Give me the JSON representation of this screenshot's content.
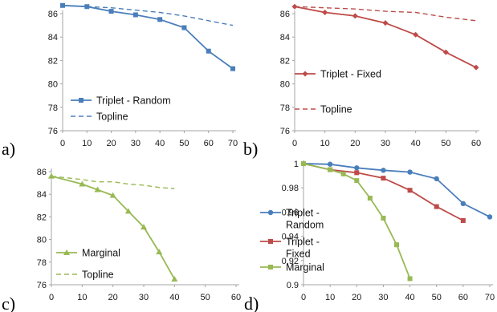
{
  "colors": {
    "triplet_random": "#4a7ebb",
    "triplet_fixed": "#be4b48",
    "marginal": "#98b954",
    "axis": "#a6a6a6"
  },
  "chart_data": [
    {
      "type": "line",
      "panel_label": "a)",
      "xlim": [
        0,
        70
      ],
      "ylim": [
        76,
        86
      ],
      "x_ticks": [
        "0",
        "10",
        "20",
        "30",
        "40",
        "50",
        "60",
        "70"
      ],
      "y_ticks": [
        "76",
        "78",
        "80",
        "82",
        "84",
        "86"
      ],
      "legend_position": "bottom-left",
      "series": [
        {
          "name": "Triplet - Random",
          "style": "solid",
          "marker": "square",
          "color": "#4a7ebb",
          "x": [
            0,
            10,
            20,
            30,
            40,
            50,
            60,
            70
          ],
          "y": [
            86.7,
            86.6,
            86.2,
            85.9,
            85.5,
            84.8,
            82.8,
            81.3
          ]
        },
        {
          "name": "Topline",
          "style": "dashed",
          "marker": "none",
          "color": "#4a7ebb",
          "x": [
            0,
            10,
            20,
            30,
            40,
            50,
            60,
            70
          ],
          "y": [
            86.7,
            86.6,
            86.5,
            86.3,
            86.1,
            85.8,
            85.4,
            85.0
          ]
        }
      ]
    },
    {
      "type": "line",
      "panel_label": "b)",
      "xlim": [
        0,
        60
      ],
      "ylim": [
        76,
        86
      ],
      "x_ticks": [
        "0",
        "10",
        "20",
        "30",
        "40",
        "50",
        "60"
      ],
      "y_ticks": [
        "76",
        "78",
        "80",
        "82",
        "84",
        "86"
      ],
      "legend_position": "right",
      "series": [
        {
          "name": "Triplet - Fixed",
          "style": "solid",
          "marker": "diamond",
          "color": "#be4b48",
          "x": [
            0,
            10,
            20,
            30,
            40,
            50,
            60
          ],
          "y": [
            86.6,
            86.1,
            85.8,
            85.2,
            84.2,
            82.7,
            81.4
          ]
        },
        {
          "name": "Topline",
          "style": "dashed",
          "marker": "none",
          "color": "#be4b48",
          "x": [
            0,
            10,
            20,
            30,
            40,
            50,
            60
          ],
          "y": [
            86.6,
            86.5,
            86.4,
            86.2,
            86.1,
            85.7,
            85.4
          ]
        }
      ]
    },
    {
      "type": "line",
      "panel_label": "c)",
      "xlim": [
        0,
        60
      ],
      "ylim": [
        76,
        86
      ],
      "x_ticks": [
        "0",
        "10",
        "20",
        "30",
        "40",
        "50",
        "60"
      ],
      "y_ticks": [
        "76",
        "78",
        "80",
        "82",
        "84",
        "86"
      ],
      "legend_position": "bottom-left",
      "series": [
        {
          "name": "Marginal",
          "style": "solid",
          "marker": "triangle",
          "color": "#98b954",
          "x": [
            0,
            10,
            15,
            20,
            25,
            30,
            35,
            40
          ],
          "y": [
            85.6,
            84.9,
            84.4,
            83.9,
            82.5,
            81.1,
            78.9,
            76.5
          ]
        },
        {
          "name": "Topline",
          "style": "dashed",
          "marker": "none",
          "color": "#98b954",
          "x": [
            0,
            10,
            15,
            20,
            25,
            30,
            35,
            40
          ],
          "y": [
            85.6,
            85.3,
            85.1,
            85.1,
            84.9,
            84.8,
            84.6,
            84.5
          ]
        }
      ]
    },
    {
      "type": "line",
      "panel_label": "d)",
      "xlim": [
        0,
        70
      ],
      "ylim": [
        0.9,
        1.0
      ],
      "x_ticks": [
        "0",
        "10",
        "20",
        "30",
        "40",
        "50",
        "60",
        "70"
      ],
      "y_ticks": [
        "0.9",
        "0.92",
        "0.94",
        "0.96",
        "0.98",
        "1"
      ],
      "legend_position": "left",
      "series": [
        {
          "name": "Triplet - Random",
          "legend_lines": [
            "Triplet -",
            "Random"
          ],
          "style": "solid",
          "marker": "circle",
          "color": "#4a7ebb",
          "x": [
            0,
            10,
            20,
            30,
            40,
            50,
            60,
            70
          ],
          "y": [
            1.0,
            0.9995,
            0.9965,
            0.9945,
            0.993,
            0.9875,
            0.967,
            0.956
          ]
        },
        {
          "name": "Triplet - Fixed",
          "legend_lines": [
            "Triplet -",
            "Fixed"
          ],
          "style": "solid",
          "marker": "square",
          "color": "#be4b48",
          "x": [
            0,
            10,
            20,
            30,
            40,
            50,
            60
          ],
          "y": [
            1.0,
            0.995,
            0.9925,
            0.988,
            0.978,
            0.9645,
            0.953
          ]
        },
        {
          "name": "Marginal",
          "legend_lines": [
            "Marginal"
          ],
          "style": "solid",
          "marker": "square",
          "color": "#98b954",
          "x": [
            0,
            10,
            15,
            20,
            25,
            30,
            35,
            40
          ],
          "y": [
            1.0,
            0.995,
            0.9915,
            0.986,
            0.9715,
            0.955,
            0.933,
            0.905
          ]
        }
      ]
    }
  ]
}
